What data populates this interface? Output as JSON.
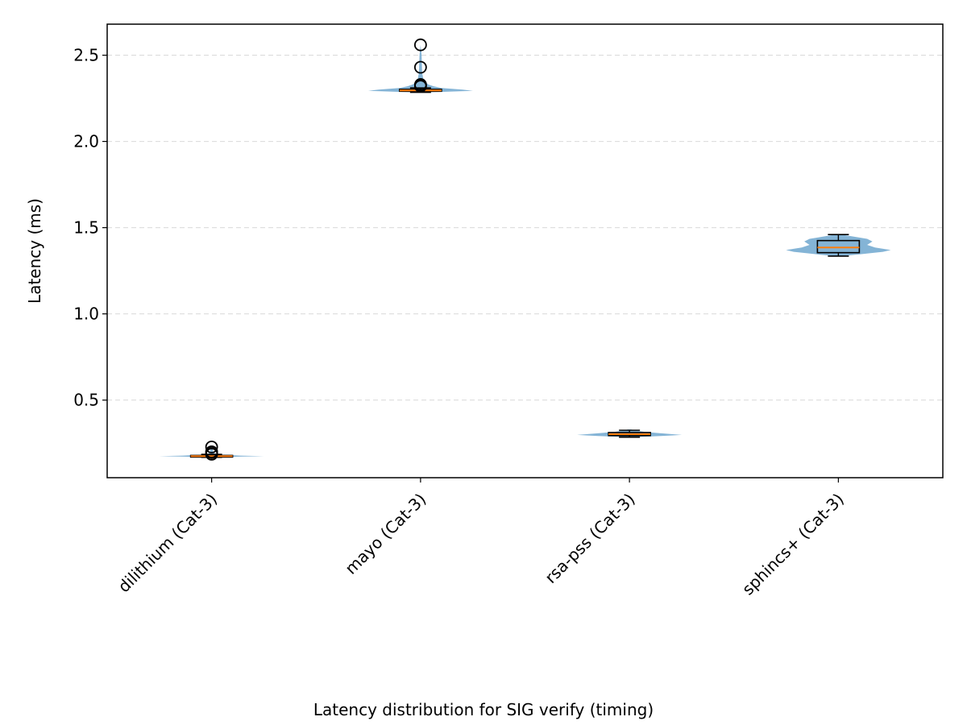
{
  "chart_data": {
    "type": "violin",
    "caption": "Latency distribution for SIG verify (timing)",
    "ylabel": "Latency (ms)",
    "xlabel": "",
    "ylim": [
      0.05,
      2.68
    ],
    "yticks": [
      0.5,
      1.0,
      1.5,
      2.0,
      2.5
    ],
    "ytick_labels": [
      "0.5",
      "1.0",
      "1.5",
      "2.0",
      "2.5"
    ],
    "grid": "y-dashed",
    "colors": {
      "violin": "#1f77b4",
      "median": "#ff7f0e",
      "box": "#000000",
      "grid": "#d9d9d9"
    },
    "categories": [
      "dilithium (Cat-3)",
      "mayo (Cat-3)",
      "rsa-pss (Cat-3)",
      "sphincs+ (Cat-3)"
    ],
    "series": [
      {
        "category": "dilithium (Cat-3)",
        "violin_profile": [
          [
            0.168,
            0.03
          ],
          [
            0.173,
            0.6
          ],
          [
            0.175,
            1.0
          ],
          [
            0.178,
            0.55
          ],
          [
            0.183,
            0.2
          ],
          [
            0.19,
            0.06
          ],
          [
            0.2,
            0.03
          ],
          [
            0.22,
            0.015
          ],
          [
            0.234,
            0.0
          ]
        ],
        "q1": 0.172,
        "median": 0.175,
        "q3": 0.179,
        "whisker_low": 0.168,
        "whisker_high": 0.185,
        "outliers": [
          0.186,
          0.195,
          0.2,
          0.228
        ]
      },
      {
        "category": "mayo (Cat-3)",
        "violin_profile": [
          [
            0.0,
            0.0
          ],
          [
            2.285,
            0.15
          ],
          [
            2.293,
            1.0
          ],
          [
            2.3,
            0.8
          ],
          [
            2.31,
            0.4
          ],
          [
            2.32,
            0.25
          ],
          [
            2.33,
            0.15
          ],
          [
            2.35,
            0.06
          ],
          [
            2.4,
            0.03
          ],
          [
            2.5,
            0.02
          ],
          [
            2.56,
            0.0
          ]
        ],
        "q1": 2.291,
        "median": 2.296,
        "q3": 2.302,
        "whisker_low": 2.285,
        "whisker_high": 2.31,
        "outliers": [
          2.32,
          2.325,
          2.33,
          2.43,
          2.56
        ]
      },
      {
        "category": "rsa-pss (Cat-3)",
        "violin_profile": [
          [
            0.285,
            0.04
          ],
          [
            0.292,
            0.6
          ],
          [
            0.298,
            1.0
          ],
          [
            0.305,
            0.7
          ],
          [
            0.315,
            0.3
          ],
          [
            0.325,
            0.1
          ],
          [
            0.33,
            0.03
          ]
        ],
        "q1": 0.294,
        "median": 0.302,
        "q3": 0.312,
        "whisker_low": 0.285,
        "whisker_high": 0.325,
        "outliers": []
      },
      {
        "category": "sphincs+ (Cat-3)",
        "violin_profile": [
          [
            1.335,
            0.05
          ],
          [
            1.345,
            0.4
          ],
          [
            1.36,
            0.85
          ],
          [
            1.37,
            1.0
          ],
          [
            1.385,
            0.7
          ],
          [
            1.4,
            0.55
          ],
          [
            1.42,
            0.65
          ],
          [
            1.435,
            0.55
          ],
          [
            1.45,
            0.25
          ],
          [
            1.46,
            0.05
          ]
        ],
        "q1": 1.355,
        "median": 1.385,
        "q3": 1.425,
        "whisker_low": 1.335,
        "whisker_high": 1.46,
        "outliers": []
      }
    ]
  }
}
